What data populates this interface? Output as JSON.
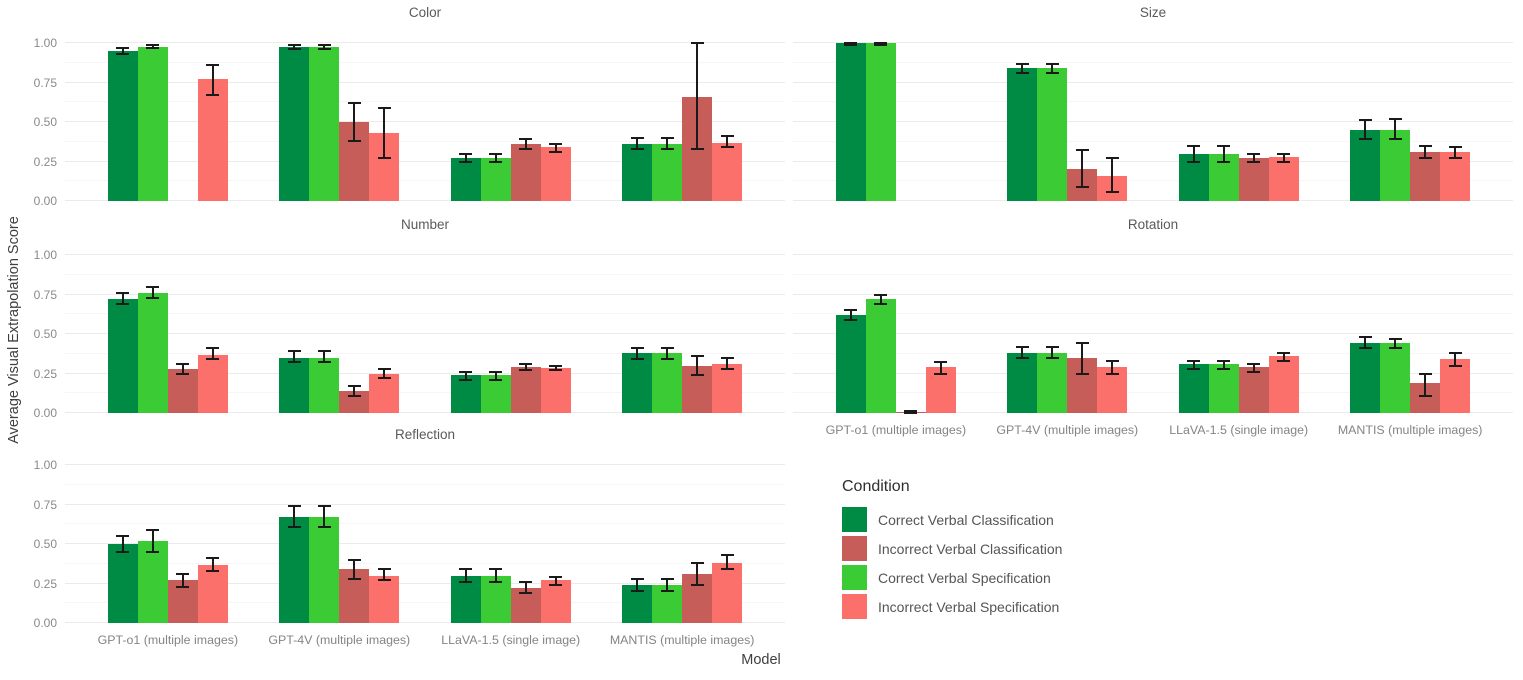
{
  "chart_data": {
    "type": "bar",
    "ylabel": "Average Visual Extrapolation Score",
    "xlabel": "Model",
    "ylim": [
      0,
      1.0
    ],
    "yticks": [
      0.0,
      0.25,
      0.5,
      0.75,
      1.0
    ],
    "ytick_labels": [
      "0.00",
      "0.25",
      "0.50",
      "0.75",
      "1.00"
    ],
    "grid": "major and minor horizontal gridlines, minimal theme, no axis ticks",
    "categories": [
      "GPT-o1 (multiple images)",
      "GPT-4V (multiple images)",
      "LLaVA-1.5 (single image)",
      "MANTIS (multiple images)"
    ],
    "legend": {
      "title": "Condition",
      "position": "bottom-right of figure",
      "entries": [
        {
          "label": "Correct Verbal Classification",
          "color": "#008B45"
        },
        {
          "label": "Incorrect Verbal Classification",
          "color": "#C65D59"
        },
        {
          "label": "Correct Verbal Specification",
          "color": "#3BCC35"
        },
        {
          "label": "Incorrect Verbal Specification",
          "color": "#FC706C"
        }
      ]
    },
    "bar_display_order": [
      "Correct Verbal Classification",
      "Correct Verbal Specification",
      "Incorrect Verbal Classification",
      "Incorrect Verbal Specification"
    ],
    "errorbar_color": "#1a1a1a",
    "facets": [
      {
        "title": "Color",
        "row": 0,
        "col": 0,
        "show_x_labels": false,
        "show_y_labels": true,
        "series": [
          {
            "condition": "Correct Verbal Classification",
            "values": [
              0.95,
              0.975,
              0.27,
              0.36
            ],
            "errors": [
              [
                0.93,
                0.97
              ],
              [
                0.965,
                0.985
              ],
              [
                0.25,
                0.3
              ],
              [
                0.33,
                0.4
              ]
            ]
          },
          {
            "condition": "Correct Verbal Specification",
            "values": [
              0.975,
              0.975,
              0.27,
              0.36
            ],
            "errors": [
              [
                0.97,
                0.985
              ],
              [
                0.965,
                0.985
              ],
              [
                0.25,
                0.3
              ],
              [
                0.33,
                0.4
              ]
            ]
          },
          {
            "condition": "Incorrect Verbal Classification",
            "values": [
              null,
              0.5,
              0.36,
              0.66
            ],
            "errors": [
              null,
              [
                0.38,
                0.62
              ],
              [
                0.33,
                0.39
              ],
              [
                0.33,
                1.0
              ]
            ]
          },
          {
            "condition": "Incorrect Verbal Specification",
            "values": [
              0.77,
              0.43,
              0.34,
              0.37
            ],
            "errors": [
              [
                0.67,
                0.86
              ],
              [
                0.27,
                0.59
              ],
              [
                0.31,
                0.36
              ],
              [
                0.34,
                0.41
              ]
            ]
          }
        ]
      },
      {
        "title": "Size",
        "row": 0,
        "col": 1,
        "show_x_labels": false,
        "show_y_labels": false,
        "series": [
          {
            "condition": "Correct Verbal Classification",
            "values": [
              1.0,
              0.84,
              0.3,
              0.45
            ],
            "errors": [
              [
                0.99,
                1.0
              ],
              [
                0.81,
                0.87
              ],
              [
                0.25,
                0.35
              ],
              [
                0.39,
                0.51
              ]
            ]
          },
          {
            "condition": "Correct Verbal Specification",
            "values": [
              1.0,
              0.84,
              0.3,
              0.45
            ],
            "errors": [
              [
                0.99,
                1.0
              ],
              [
                0.81,
                0.87
              ],
              [
                0.25,
                0.35
              ],
              [
                0.39,
                0.52
              ]
            ]
          },
          {
            "condition": "Incorrect Verbal Classification",
            "values": [
              null,
              0.2,
              0.27,
              0.31
            ],
            "errors": [
              null,
              [
                0.09,
                0.32
              ],
              [
                0.25,
                0.3
              ],
              [
                0.27,
                0.35
              ]
            ]
          },
          {
            "condition": "Incorrect Verbal Specification",
            "values": [
              null,
              0.16,
              0.28,
              0.31
            ],
            "errors": [
              null,
              [
                0.06,
                0.27
              ],
              [
                0.25,
                0.3
              ],
              [
                0.27,
                0.34
              ]
            ]
          }
        ]
      },
      {
        "title": "Number",
        "row": 1,
        "col": 0,
        "show_x_labels": false,
        "show_y_labels": true,
        "series": [
          {
            "condition": "Correct Verbal Classification",
            "values": [
              0.72,
              0.35,
              0.24,
              0.38
            ],
            "errors": [
              [
                0.69,
                0.76
              ],
              [
                0.32,
                0.39
              ],
              [
                0.21,
                0.26
              ],
              [
                0.34,
                0.41
              ]
            ]
          },
          {
            "condition": "Correct Verbal Specification",
            "values": [
              0.76,
              0.35,
              0.24,
              0.38
            ],
            "errors": [
              [
                0.73,
                0.8
              ],
              [
                0.32,
                0.39
              ],
              [
                0.21,
                0.26
              ],
              [
                0.34,
                0.41
              ]
            ]
          },
          {
            "condition": "Incorrect Verbal Classification",
            "values": [
              0.28,
              0.14,
              0.29,
              0.3
            ],
            "errors": [
              [
                0.25,
                0.31
              ],
              [
                0.11,
                0.17
              ],
              [
                0.27,
                0.31
              ],
              [
                0.24,
                0.36
              ]
            ]
          },
          {
            "condition": "Incorrect Verbal Specification",
            "values": [
              0.37,
              0.25,
              0.285,
              0.31
            ],
            "errors": [
              [
                0.34,
                0.41
              ],
              [
                0.22,
                0.28
              ],
              [
                0.27,
                0.3
              ],
              [
                0.28,
                0.35
              ]
            ]
          }
        ]
      },
      {
        "title": "Rotation",
        "row": 1,
        "col": 1,
        "show_x_labels": true,
        "show_y_labels": false,
        "series": [
          {
            "condition": "Correct Verbal Classification",
            "values": [
              0.62,
              0.38,
              0.31,
              0.44
            ],
            "errors": [
              [
                0.59,
                0.65
              ],
              [
                0.35,
                0.42
              ],
              [
                0.28,
                0.33
              ],
              [
                0.41,
                0.48
              ]
            ]
          },
          {
            "condition": "Correct Verbal Specification",
            "values": [
              0.72,
              0.38,
              0.31,
              0.44
            ],
            "errors": [
              [
                0.69,
                0.75
              ],
              [
                0.35,
                0.42
              ],
              [
                0.28,
                0.33
              ],
              [
                0.41,
                0.47
              ]
            ]
          },
          {
            "condition": "Incorrect Verbal Classification",
            "values": [
              0.005,
              0.35,
              0.29,
              0.19
            ],
            "errors": [
              [
                0.0,
                0.012
              ],
              [
                0.25,
                0.44
              ],
              [
                0.26,
                0.31
              ],
              [
                0.11,
                0.25
              ]
            ]
          },
          {
            "condition": "Incorrect Verbal Specification",
            "values": [
              0.29,
              0.29,
              0.36,
              0.34
            ],
            "errors": [
              [
                0.25,
                0.32
              ],
              [
                0.25,
                0.33
              ],
              [
                0.33,
                0.38
              ],
              [
                0.3,
                0.38
              ]
            ]
          }
        ]
      },
      {
        "title": "Reflection",
        "row": 2,
        "col": 0,
        "show_x_labels": true,
        "show_y_labels": true,
        "series": [
          {
            "condition": "Correct Verbal Classification",
            "values": [
              0.5,
              0.67,
              0.3,
              0.24
            ],
            "errors": [
              [
                0.45,
                0.55
              ],
              [
                0.61,
                0.74
              ],
              [
                0.26,
                0.34
              ],
              [
                0.2,
                0.28
              ]
            ]
          },
          {
            "condition": "Correct Verbal Specification",
            "values": [
              0.52,
              0.67,
              0.3,
              0.24
            ],
            "errors": [
              [
                0.45,
                0.59
              ],
              [
                0.61,
                0.74
              ],
              [
                0.26,
                0.34
              ],
              [
                0.2,
                0.28
              ]
            ]
          },
          {
            "condition": "Incorrect Verbal Classification",
            "values": [
              0.27,
              0.34,
              0.22,
              0.31
            ],
            "errors": [
              [
                0.23,
                0.31
              ],
              [
                0.28,
                0.4
              ],
              [
                0.19,
                0.26
              ],
              [
                0.24,
                0.38
              ]
            ]
          },
          {
            "condition": "Incorrect Verbal Specification",
            "values": [
              0.37,
              0.3,
              0.27,
              0.38
            ],
            "errors": [
              [
                0.33,
                0.41
              ],
              [
                0.27,
                0.34
              ],
              [
                0.24,
                0.29
              ],
              [
                0.34,
                0.43
              ]
            ]
          }
        ]
      }
    ]
  }
}
